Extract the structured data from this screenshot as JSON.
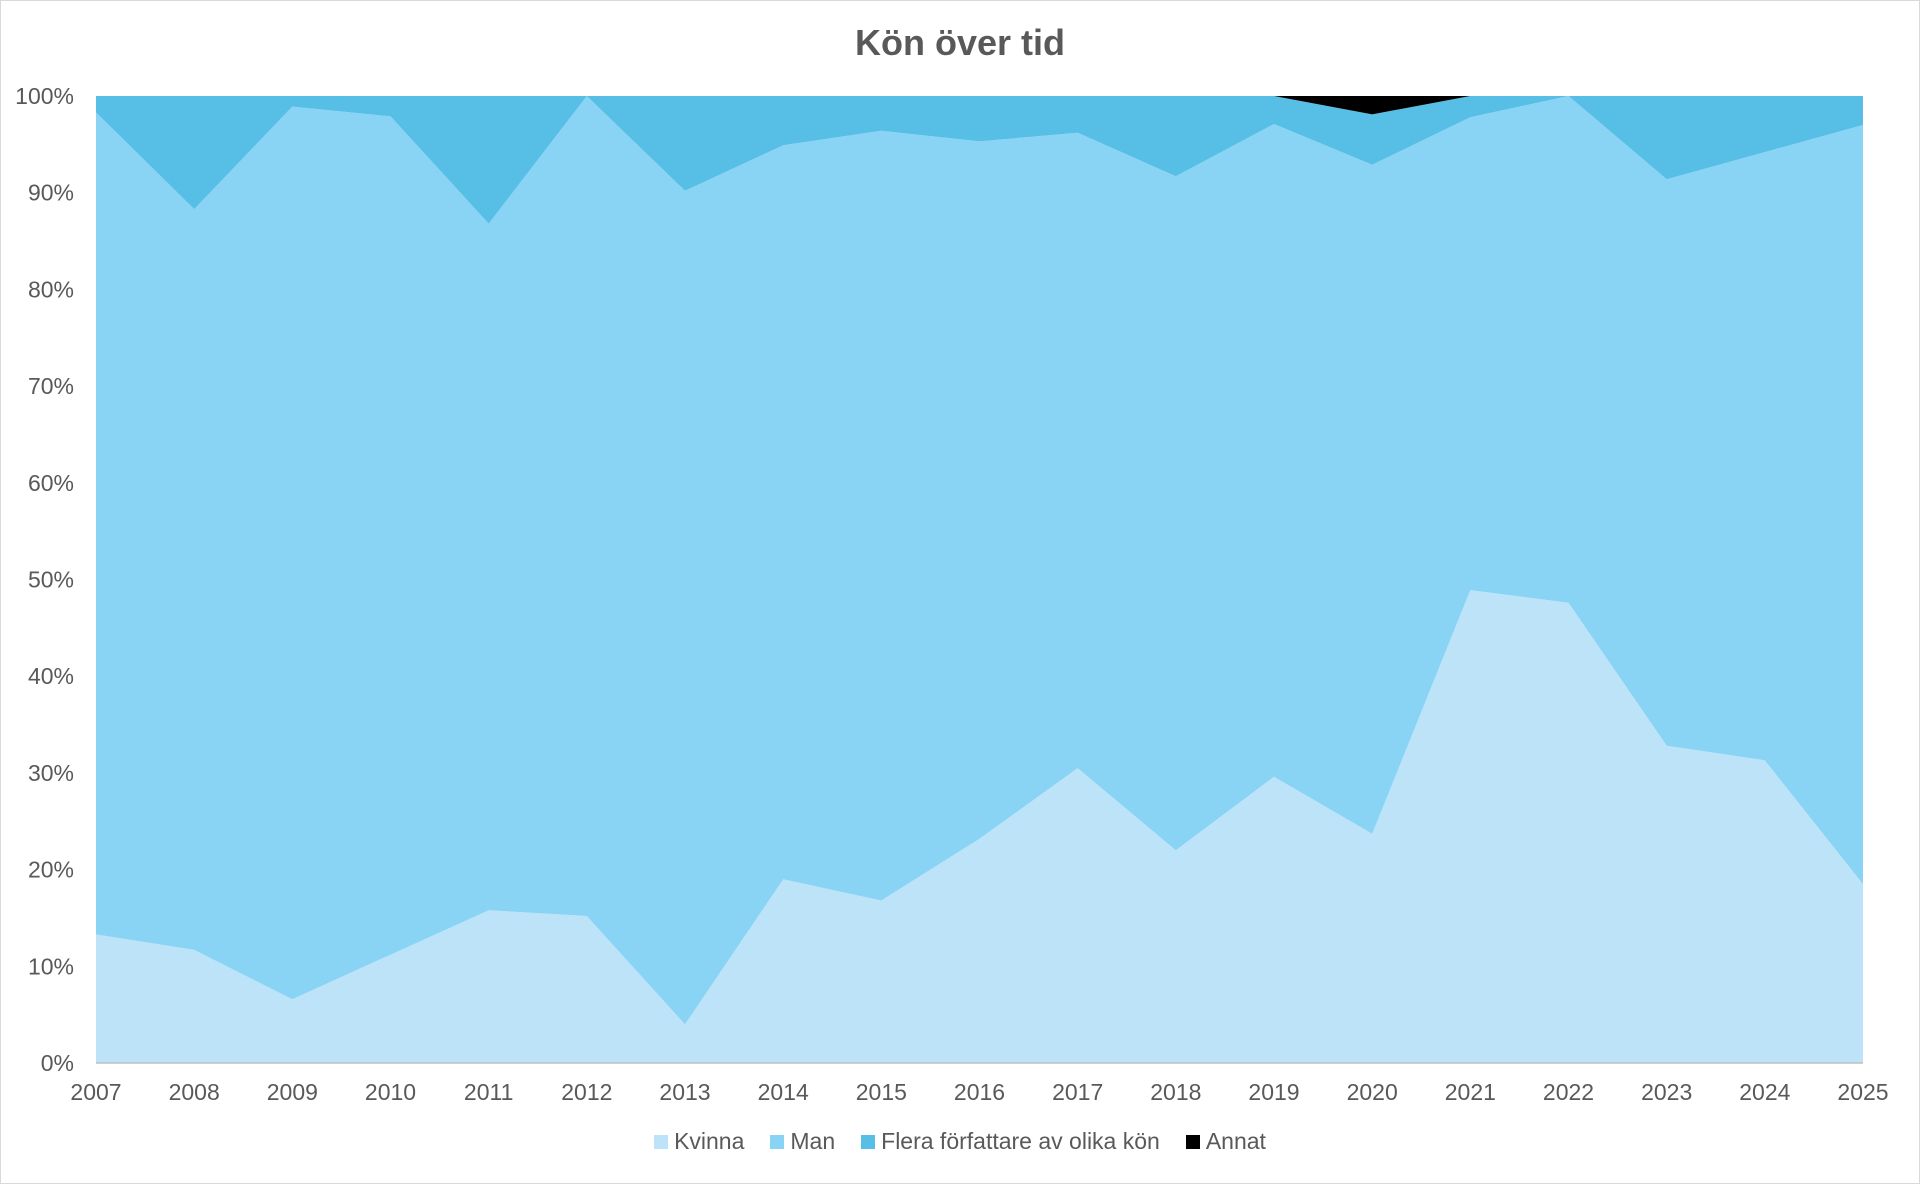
{
  "chart_data": {
    "type": "area",
    "stacked": "percent",
    "title": "Kön över tid",
    "xlabel": "",
    "ylabel": "",
    "x": [
      "2007",
      "2008",
      "2009",
      "2010",
      "2011",
      "2012",
      "2013",
      "2014",
      "2015",
      "2016",
      "2017",
      "2018",
      "2019",
      "2020",
      "2021",
      "2022",
      "2023",
      "2024",
      "2025"
    ],
    "ylim": [
      0,
      100
    ],
    "yticks": [
      "0%",
      "10%",
      "20%",
      "30%",
      "40%",
      "50%",
      "60%",
      "70%",
      "80%",
      "90%",
      "100%"
    ],
    "legend_position": "bottom",
    "grid": false,
    "series": [
      {
        "name": "Kvinna",
        "color": "#bde3f8",
        "values": [
          13.3,
          11.7,
          6.6,
          11.2,
          15.8,
          15.2,
          4.0,
          19.0,
          16.8,
          23.2,
          30.5,
          22.0,
          29.6,
          23.7,
          48.9,
          47.6,
          32.8,
          31.3,
          18.5
        ]
      },
      {
        "name": "Man",
        "color": "#89d3f5",
        "values": [
          85.0,
          76.6,
          92.3,
          86.7,
          71.0,
          84.8,
          86.2,
          75.9,
          79.6,
          72.1,
          65.7,
          69.7,
          67.5,
          69.2,
          48.9,
          52.4,
          58.6,
          62.9,
          78.5
        ]
      },
      {
        "name": "Flera författare av olika kön",
        "color": "#57bfe5",
        "values": [
          1.7,
          11.7,
          1.1,
          2.1,
          13.2,
          0.0,
          9.8,
          5.1,
          3.6,
          4.7,
          3.8,
          8.3,
          2.9,
          5.2,
          2.2,
          0.0,
          8.6,
          5.8,
          3.0
        ]
      },
      {
        "name": "Annat",
        "color": "#000000",
        "values": [
          0,
          0,
          0,
          0,
          0,
          0,
          0,
          0,
          0,
          0,
          0,
          0,
          0,
          1.9,
          0,
          0,
          0,
          0,
          0
        ]
      }
    ]
  }
}
